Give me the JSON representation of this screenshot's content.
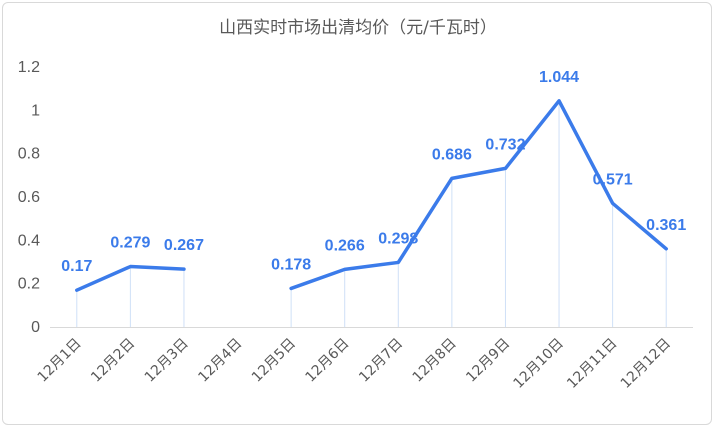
{
  "chart_data": {
    "type": "line",
    "title": "山西实时市场出清均价（元/千瓦时）",
    "xlabel": "",
    "ylabel": "",
    "categories": [
      "12月1日",
      "12月2日",
      "12月3日",
      "12月4日",
      "12月5日",
      "12月6日",
      "12月7日",
      "12月8日",
      "12月9日",
      "12月10日",
      "12月11日",
      "12月12日"
    ],
    "values": [
      0.17,
      0.279,
      0.267,
      null,
      0.178,
      0.266,
      0.298,
      0.686,
      0.732,
      1.044,
      0.571,
      0.361
    ],
    "labels": [
      "0.17",
      "0.279",
      "0.267",
      "",
      "0.178",
      "0.266",
      "0.298",
      "0.686",
      "0.732",
      "1.044",
      "0.571",
      "0.361"
    ],
    "ylim": [
      0,
      1.2
    ],
    "yticks": [
      "0",
      "0.2",
      "0.4",
      "0.6",
      "0.8",
      "1",
      "1.2"
    ],
    "grid": false,
    "legend": "none",
    "colors": {
      "line": "#3b7bea",
      "drop": "#cfe0f7",
      "axis": "#d9d9d9",
      "text": "#595959"
    }
  }
}
